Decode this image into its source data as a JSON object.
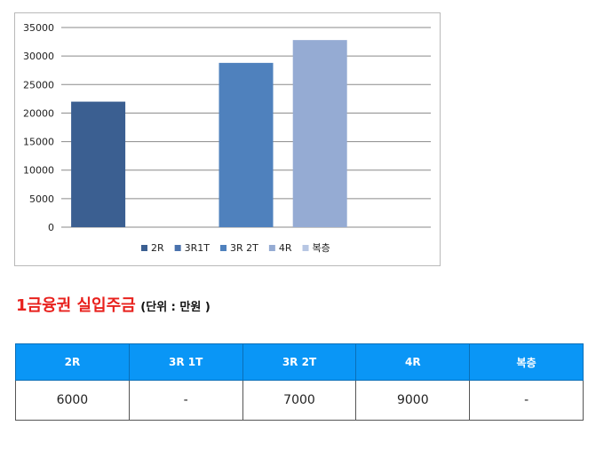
{
  "chart_data": {
    "type": "bar",
    "categories": [
      "2R",
      "3R1T",
      "3R 2T",
      "4R",
      "복층"
    ],
    "values": [
      22000,
      null,
      28800,
      32800,
      null
    ],
    "colors": [
      "#3b5f91",
      "#4a72ad",
      "#4f81bd",
      "#95abd3",
      "#b7c6e3"
    ],
    "yticks": [
      "0",
      "5000",
      "10000",
      "15000",
      "20000",
      "25000",
      "30000",
      "35000"
    ],
    "ylim": [
      0,
      35000
    ],
    "grid": true,
    "legend_placement": "bottom"
  },
  "deposit": {
    "title": "1금융권 실입주금",
    "unit_note": "(단위 : 만원 )"
  },
  "table": {
    "headers": [
      "2R",
      "3R 1T",
      "3R 2T",
      "4R",
      "복층"
    ],
    "row": [
      "6000",
      "-",
      "7000",
      "9000",
      "-"
    ]
  }
}
